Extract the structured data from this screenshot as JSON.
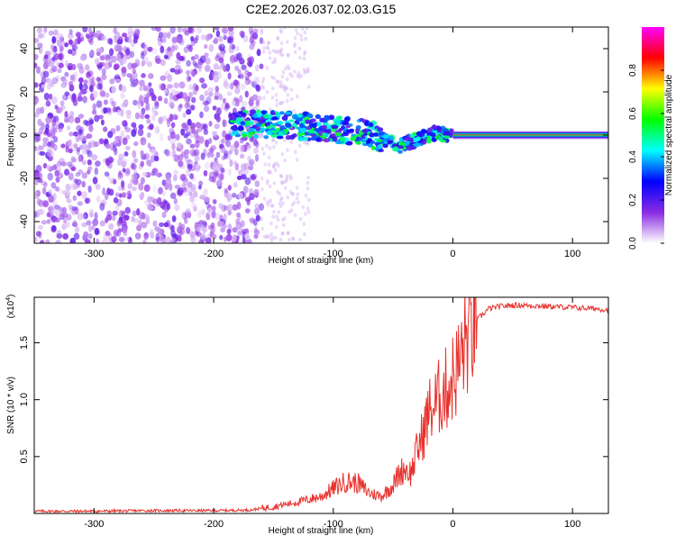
{
  "title": "C2E2.2026.037.02.03.G15",
  "chart_data": [
    {
      "type": "heatmap",
      "title": "C2E2.2026.037.02.03.G15",
      "xlabel": "Height of straight line (km)",
      "ylabel": "Frequency (Hz)",
      "xlim": [
        -350,
        130
      ],
      "ylim": [
        -50,
        50
      ],
      "xticks": [
        -300,
        -200,
        -100,
        0,
        100
      ],
      "xtick_labels": [
        "-300",
        "-200",
        "-100",
        "0",
        "100"
      ],
      "yticks": [
        -40,
        -20,
        0,
        20,
        40
      ],
      "ytick_labels": [
        "-40",
        "-20",
        "0",
        "20",
        "40"
      ],
      "colorbar": {
        "label": "Normalized spectral amplitude",
        "range": [
          0,
          1
        ],
        "ticks": [
          0.0,
          0.2,
          0.4,
          0.6,
          0.8
        ],
        "tick_labels": [
          "0.0",
          "0.2",
          "0.4",
          "0.6",
          "0.8"
        ],
        "stops": [
          "#ffffff",
          "#8a2be2",
          "#0000ff",
          "#00ffff",
          "#00ff00",
          "#ffff00",
          "#ff0000",
          "#ff00ff"
        ]
      },
      "features": [
        {
          "name": "noise-region",
          "x_range": [
            -350,
            -160
          ],
          "freq_range": [
            -50,
            50
          ],
          "amplitude": 0.15
        },
        {
          "name": "tracked-signal",
          "x": [
            -185,
            -150,
            -120,
            -90,
            -70,
            -55,
            -45,
            -30,
            -15,
            0
          ],
          "freq": [
            5,
            5,
            4,
            2,
            1,
            -3,
            -5,
            -2,
            1,
            0
          ],
          "amplitude": 0.4
        },
        {
          "name": "steady-tone",
          "x_range": [
            0,
            130
          ],
          "freq": 0,
          "amplitude": 0.95
        }
      ]
    },
    {
      "type": "line",
      "xlabel": "Height of straight line (km)",
      "ylabel": "SNR (10 * v/v)",
      "y_multiplier": "(x10",
      "y_multiplier_exp": "4",
      "xlim": [
        -350,
        130
      ],
      "ylim": [
        0,
        19000
      ],
      "xticks": [
        -300,
        -200,
        -100,
        0,
        100
      ],
      "xtick_labels": [
        "-300",
        "-200",
        "-100",
        "0",
        "100"
      ],
      "yticks": [
        5000,
        10000,
        15000
      ],
      "ytick_labels": [
        "0.5",
        "1.0",
        "1.5"
      ],
      "color": "#e8322d",
      "series": [
        {
          "name": "SNR",
          "x": [
            -350,
            -300,
            -250,
            -200,
            -170,
            -150,
            -130,
            -110,
            -100,
            -90,
            -80,
            -70,
            -60,
            -50,
            -45,
            -40,
            -35,
            -30,
            -25,
            -20,
            -15,
            -10,
            -5,
            0,
            5,
            10,
            20,
            30,
            40,
            50,
            60,
            80,
            100,
            120,
            130
          ],
          "y": [
            200,
            200,
            250,
            250,
            300,
            600,
            1000,
            1500,
            2200,
            2800,
            2700,
            1800,
            1500,
            2500,
            3500,
            4000,
            3500,
            5500,
            7000,
            9000,
            9500,
            10500,
            11000,
            12000,
            13000,
            15000,
            17000,
            18000,
            18200,
            18300,
            18300,
            18200,
            18100,
            18000,
            17900
          ]
        }
      ]
    }
  ]
}
